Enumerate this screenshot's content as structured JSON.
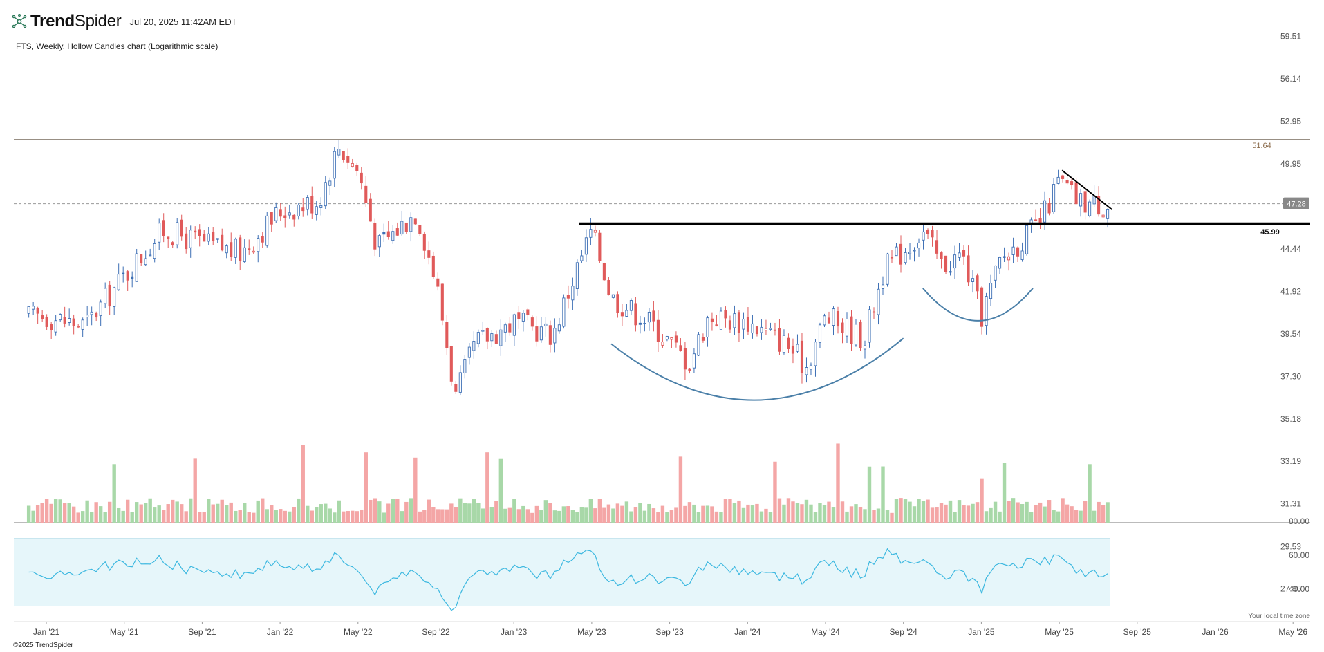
{
  "header": {
    "brand_light": "Trend",
    "brand_bold": "Spider",
    "timestamp": "Jul 20, 2025 11:42AM EDT",
    "description": "FTS, Weekly, Hollow Candles chart (Logarithmic scale)"
  },
  "footer": {
    "copyright": "©2025 TrendSpider",
    "tz_note": "Your local time zone"
  },
  "colors": {
    "up": "#3d6fb5",
    "down": "#e05a5a",
    "vol_up": "#a8d8a8",
    "vol_down": "#f4a6a6",
    "rsi_line": "#3cb8e0",
    "rsi_band": "#e6f6fa",
    "arc": "#4a7fa8",
    "resistance": "#8a7f72"
  },
  "chart_data": {
    "type": "candlestick",
    "symbol": "FTS",
    "interval": "Weekly",
    "style": "Hollow Candles",
    "scale": "log",
    "price_axis_ticks": [
      "59.51",
      "56.14",
      "52.95",
      "49.95",
      "44.44",
      "41.92",
      "39.54",
      "37.30",
      "35.18",
      "33.19",
      "31.31",
      "29.53",
      "27.86"
    ],
    "x_axis_ticks": [
      "Jan '21",
      "May '21",
      "Sep '21",
      "Jan '22",
      "May '22",
      "Sep '22",
      "Jan '23",
      "May '23",
      "Sep '23",
      "Jan '24",
      "May '24",
      "Sep '24",
      "Jan '25",
      "May '25",
      "Sep '25",
      "Jan '26",
      "May '26"
    ],
    "levels": {
      "resistance": "51.64",
      "breakout": "45.99",
      "last_price": "47.28"
    },
    "rsi_ticks": [
      "80.00",
      "60.00",
      "40.00"
    ],
    "close_anchors": [
      [
        "Jan '21",
        40.5
      ],
      [
        "Mar '21",
        40.0
      ],
      [
        "May '21",
        42.8
      ],
      [
        "Jul '21",
        45.6
      ],
      [
        "Sep '21",
        44.8
      ],
      [
        "Nov '21",
        44.2
      ],
      [
        "Jan '22",
        46.8
      ],
      [
        "Mar '22",
        47.5
      ],
      [
        "Apr '22",
        51.2
      ],
      [
        "May '22",
        49.5
      ],
      [
        "Jun '22",
        44.5
      ],
      [
        "Aug '22",
        46.8
      ],
      [
        "Sep '22",
        42.5
      ],
      [
        "Oct '22",
        36.2
      ],
      [
        "Nov '22",
        39.0
      ],
      [
        "Jan '23",
        40.2
      ],
      [
        "Mar '23",
        39.5
      ],
      [
        "Apr '23",
        42.5
      ],
      [
        "May '23",
        45.6
      ],
      [
        "Jun '23",
        41.6
      ],
      [
        "Aug '23",
        40.2
      ],
      [
        "Oct '23",
        38.0
      ],
      [
        "Nov '23",
        40.5
      ],
      [
        "Jan '24",
        40.2
      ],
      [
        "Mar '24",
        39.0
      ],
      [
        "Apr '24",
        37.8
      ],
      [
        "May '24",
        40.5
      ],
      [
        "Jul '24",
        39.3
      ],
      [
        "Aug '24",
        43.2
      ],
      [
        "Oct '24",
        45.5
      ],
      [
        "Nov '24",
        43.4
      ],
      [
        "Dec '24",
        44.1
      ],
      [
        "Jan '25",
        40.5
      ],
      [
        "Feb '25",
        43.8
      ],
      [
        "Apr '25",
        46.0
      ],
      [
        "May '25",
        48.8
      ],
      [
        "Jun '25",
        47.4
      ],
      [
        "Jul '25",
        47.28
      ]
    ],
    "patterns": {
      "cup_1": "May '23 – Sep '24",
      "cup_2": "Oct '24 – Apr '25",
      "descending_trendline": "May '25 – Jul '25"
    }
  }
}
